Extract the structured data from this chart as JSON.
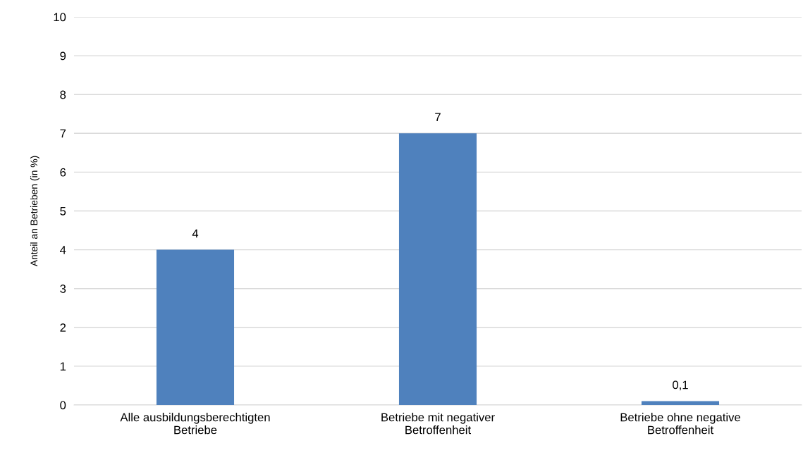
{
  "chart_data": {
    "type": "bar",
    "ylabel": "Anteil an Betrieben (in %)",
    "categories": [
      "Alle ausbildungsberechtigten\nBetriebe",
      "Betriebe mit negativer\nBetroffenheit",
      "Betriebe ohne negative\nBetroffenheit"
    ],
    "values": [
      4,
      7,
      0.1
    ],
    "value_labels": [
      "4",
      "7",
      "0,1"
    ],
    "color": "#4f81bd",
    "ylim": [
      0,
      10
    ],
    "yticks": [
      0,
      1,
      2,
      3,
      4,
      5,
      6,
      7,
      8,
      9,
      10
    ],
    "grid": "y",
    "legend": false
  }
}
